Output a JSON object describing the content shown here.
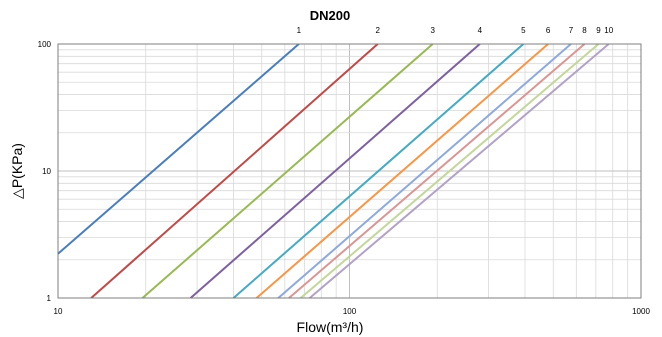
{
  "chart_data": {
    "type": "line",
    "title": "DN200",
    "xlabel": "Flow(m³/h)",
    "ylabel": "△P(KPa)",
    "x_scale": "log",
    "y_scale": "log",
    "xlim": [
      10,
      1000
    ],
    "ylim": [
      1,
      100
    ],
    "x_ticks": [
      "10",
      "100",
      "1000"
    ],
    "y_ticks": [
      "1",
      "10",
      "100"
    ],
    "grid": true,
    "legend": "none",
    "series": [
      {
        "name": "1",
        "color": "#4a7ebb",
        "x": [
          10,
          67
        ],
        "y": [
          2.23,
          100
        ]
      },
      {
        "name": "2",
        "color": "#be4b48",
        "x": [
          13,
          125
        ],
        "y": [
          1,
          100
        ]
      },
      {
        "name": "3",
        "color": "#98b954",
        "x": [
          19.5,
          193
        ],
        "y": [
          1,
          100
        ]
      },
      {
        "name": "4",
        "color": "#7d60a0",
        "x": [
          28.5,
          280
        ],
        "y": [
          1,
          100
        ]
      },
      {
        "name": "5",
        "color": "#46aac5",
        "x": [
          40,
          395
        ],
        "y": [
          1,
          100
        ]
      },
      {
        "name": "6",
        "color": "#f79646",
        "x": [
          48,
          480
        ],
        "y": [
          1,
          100
        ]
      },
      {
        "name": "7",
        "color": "#8ea9db",
        "x": [
          57,
          575
        ],
        "y": [
          1,
          100
        ]
      },
      {
        "name": "8",
        "color": "#d99694",
        "x": [
          62,
          640
        ],
        "y": [
          1,
          100
        ]
      },
      {
        "name": "9",
        "color": "#c3d69b",
        "x": [
          68,
          715
        ],
        "y": [
          1,
          100
        ]
      },
      {
        "name": "10",
        "color": "#b3a2c7",
        "x": [
          73,
          775
        ],
        "y": [
          1,
          100
        ]
      }
    ]
  }
}
